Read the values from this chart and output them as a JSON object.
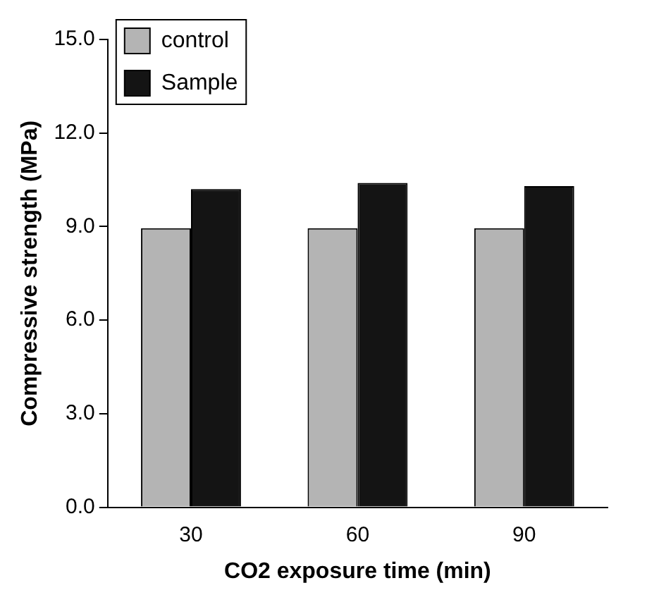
{
  "chart_data": {
    "type": "bar",
    "xlabel": "CO2 exposure time (min)",
    "ylabel": "Compressive strength (MPa)",
    "categories": [
      "30",
      "60",
      "90"
    ],
    "series": [
      {
        "name": "control",
        "color": "#b4b4b4",
        "values": [
          8.95,
          8.95,
          8.95
        ]
      },
      {
        "name": "Sample",
        "color": "#141414",
        "values": [
          10.2,
          10.4,
          10.3
        ]
      }
    ],
    "ylim": [
      0,
      15
    ],
    "yticks": [
      {
        "value": 0,
        "label": "0.0"
      },
      {
        "value": 3,
        "label": "3.0"
      },
      {
        "value": 6,
        "label": "6.0"
      },
      {
        "value": 9,
        "label": "9.0"
      },
      {
        "value": 12,
        "label": "12.0"
      },
      {
        "value": 15,
        "label": "15.0"
      }
    ],
    "grid": false,
    "legend": "top left"
  }
}
